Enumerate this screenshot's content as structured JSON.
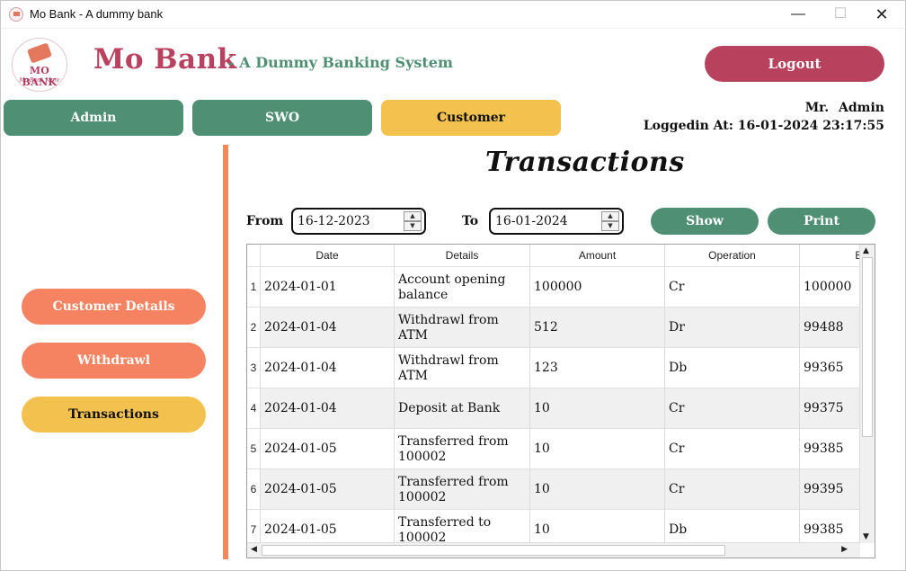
{
  "window": {
    "title": "Mo Bank - A dummy bank",
    "minimize": "—",
    "maximize": "☐",
    "close": "✕"
  },
  "logo": {
    "text": "MO BANK",
    "subtext": "Mo Bank More"
  },
  "header": {
    "brand": "Mo Bank",
    "tagline": "- A Dummy Banking System",
    "logout_label": "Logout",
    "user": "Mr. Admin",
    "login_time": "Loggedin At: 16-01-2024 23:17:55"
  },
  "tabs": [
    {
      "label": "Admin",
      "active": false
    },
    {
      "label": "SWO",
      "active": false
    },
    {
      "label": "Customer",
      "active": true
    }
  ],
  "sidebar": {
    "items": [
      {
        "label": "Customer Details",
        "active": false
      },
      {
        "label": "Withdrawl",
        "active": false
      },
      {
        "label": "Transactions",
        "active": true
      }
    ]
  },
  "main": {
    "heading": "Transactions",
    "from_label": "From",
    "from_value": "16-12-2023",
    "to_label": "To",
    "to_value": "16-01-2024",
    "show_label": "Show",
    "print_label": "Print"
  },
  "table": {
    "columns": [
      "Date",
      "Details",
      "Amount",
      "Operation",
      "Ba"
    ],
    "rows": [
      {
        "n": "1",
        "date": "2024-01-01",
        "details": "Account opening balance",
        "amount": "100000",
        "op": "Cr",
        "balance": "100000"
      },
      {
        "n": "2",
        "date": "2024-01-04",
        "details": "Withdrawl from ATM",
        "amount": "512",
        "op": "Dr",
        "balance": "99488"
      },
      {
        "n": "3",
        "date": "2024-01-04",
        "details": "Withdrawl from ATM",
        "amount": "123",
        "op": "Db",
        "balance": "99365"
      },
      {
        "n": "4",
        "date": "2024-01-04",
        "details": "Deposit at Bank",
        "amount": "10",
        "op": "Cr",
        "balance": "99375"
      },
      {
        "n": "5",
        "date": "2024-01-05",
        "details": "Transferred from 100002",
        "amount": "10",
        "op": "Cr",
        "balance": "99385"
      },
      {
        "n": "6",
        "date": "2024-01-05",
        "details": "Transferred from 100002",
        "amount": "10",
        "op": "Cr",
        "balance": "99395"
      },
      {
        "n": "7",
        "date": "2024-01-05",
        "details": "Transferred to 100002",
        "amount": "10",
        "op": "Db",
        "balance": "99385"
      }
    ]
  },
  "colors": {
    "brand": "#b8425f",
    "green": "#4f8f74",
    "yellow": "#f2c14e",
    "orange": "#f58361"
  }
}
